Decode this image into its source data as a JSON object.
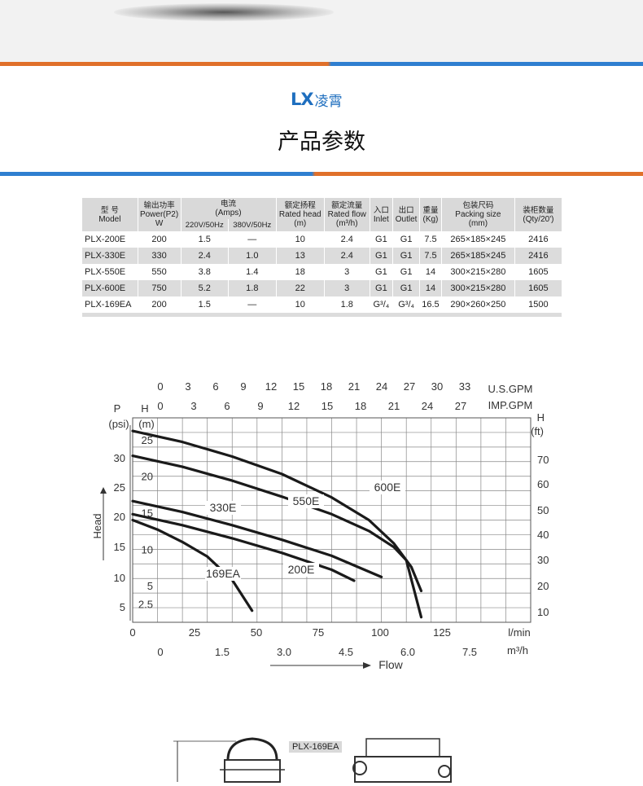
{
  "brand": {
    "logo": "LX",
    "name_cn": "凌霄",
    "color": "#1f6fbf"
  },
  "title": "产品参数",
  "stripe_colors": {
    "orange": "#e0702a",
    "blue": "#2f7fd0"
  },
  "table": {
    "headers": [
      {
        "cn": "型 号",
        "en": "Model"
      },
      {
        "cn": "输出功率",
        "en": "Power(P2)",
        "en2": "W"
      },
      {
        "cn": "电流",
        "en": "(Amps)",
        "sub": [
          "220V/50Hz",
          "380V/50Hz"
        ]
      },
      {
        "cn": "额定扬程",
        "en": "Rated head",
        "en2": "(m)"
      },
      {
        "cn": "额定流量",
        "en": "Rated flow",
        "en2": "(m³/h)"
      },
      {
        "cn": "入口",
        "en": "Inlet"
      },
      {
        "cn": "出口",
        "en": "Outlet"
      },
      {
        "cn": "重量",
        "en": "(Kg)"
      },
      {
        "cn": "包装尺码",
        "en": "Packing size",
        "en2": "(mm)"
      },
      {
        "cn": "装柜数量",
        "en": "(Qty/20')"
      }
    ],
    "rows": [
      {
        "model": "PLX-200E",
        "power": "200",
        "amp220": "1.5",
        "amp380": "—",
        "head": "10",
        "flow": "2.4",
        "inlet": "G1",
        "outlet": "G1",
        "weight": "7.5",
        "packing": "265×185×245",
        "qty": "2416"
      },
      {
        "model": "PLX-330E",
        "power": "330",
        "amp220": "2.4",
        "amp380": "1.0",
        "head": "13",
        "flow": "2.4",
        "inlet": "G1",
        "outlet": "G1",
        "weight": "7.5",
        "packing": "265×185×245",
        "qty": "2416"
      },
      {
        "model": "PLX-550E",
        "power": "550",
        "amp220": "3.8",
        "amp380": "1.4",
        "head": "18",
        "flow": "3",
        "inlet": "G1",
        "outlet": "G1",
        "weight": "14",
        "packing": "300×215×280",
        "qty": "1605"
      },
      {
        "model": "PLX-600E",
        "power": "750",
        "amp220": "5.2",
        "amp380": "1.8",
        "head": "22",
        "flow": "3",
        "inlet": "G1",
        "outlet": "G1",
        "weight": "14",
        "packing": "300×215×280",
        "qty": "1605"
      },
      {
        "model": "PLX-169EA",
        "power": "200",
        "amp220": "1.5",
        "amp380": "—",
        "head": "10",
        "flow": "1.8",
        "inlet": "G³/₄",
        "outlet": "G³/₄",
        "weight": "16.5",
        "packing": "290×260×250",
        "qty": "1500"
      }
    ]
  },
  "chart_data": {
    "type": "line",
    "xlabel": "Flow",
    "ylabel": "Head",
    "x_lmin_ticks": [
      "0",
      "25",
      "50",
      "75",
      "100",
      "125"
    ],
    "x_lmin_unit": "l/min",
    "x_m3h_ticks": [
      "0",
      "1.5",
      "3.0",
      "4.5",
      "6.0",
      "7.5"
    ],
    "x_m3h_unit": "m³/h",
    "x_usgpm_ticks": [
      "0",
      "3",
      "6",
      "9",
      "12",
      "15",
      "18",
      "21",
      "24",
      "27",
      "30",
      "33"
    ],
    "x_usgpm_unit": "U.S.GPM",
    "x_impgpm_ticks": [
      "0",
      "3",
      "6",
      "9",
      "12",
      "15",
      "18",
      "21",
      "24",
      "27"
    ],
    "x_impgpm_unit": "IMP.GPM",
    "y_m_ticks": [
      "2.5",
      "5",
      "10",
      "15",
      "20",
      "25"
    ],
    "y_m_unit_label": "H",
    "y_m_unit": "(m)",
    "y_psi_ticks": [
      "5",
      "10",
      "15",
      "20",
      "25",
      "30"
    ],
    "y_psi_unit_label": "P",
    "y_psi_unit": "(psi)",
    "y_ft_ticks": [
      "10",
      "20",
      "30",
      "40",
      "50",
      "60",
      "70"
    ],
    "y_ft_unit_label": "H",
    "y_ft_unit": "(ft)",
    "xlim_lmin": [
      0,
      150
    ],
    "ylim_m": [
      0,
      28
    ],
    "grid": true,
    "series": [
      {
        "name": "600E",
        "x": [
          0,
          20,
          40,
          60,
          80,
          95,
          105,
          112,
          116
        ],
        "y": [
          26.2,
          24.7,
          22.7,
          20.3,
          17.1,
          14.0,
          10.8,
          7.6,
          4.3
        ]
      },
      {
        "name": "550E",
        "x": [
          0,
          20,
          40,
          60,
          80,
          95,
          105,
          110,
          116
        ],
        "y": [
          22.8,
          21.3,
          19.4,
          17.2,
          14.8,
          12.5,
          10.3,
          8.5,
          0.7
        ]
      },
      {
        "name": "330E",
        "x": [
          0,
          20,
          40,
          60,
          80,
          100
        ],
        "y": [
          16.6,
          15.1,
          13.3,
          11.3,
          9.1,
          6.2
        ]
      },
      {
        "name": "200E",
        "x": [
          0,
          20,
          40,
          60,
          80,
          89
        ],
        "y": [
          14.8,
          13.3,
          11.5,
          9.5,
          7.2,
          5.7
        ]
      },
      {
        "name": "169EA",
        "x": [
          0,
          10,
          20,
          30,
          40,
          48
        ],
        "y": [
          14.0,
          12.7,
          11.0,
          9.0,
          5.8,
          1.6
        ]
      }
    ]
  },
  "drawing": {
    "label": "PLX-169EA"
  }
}
